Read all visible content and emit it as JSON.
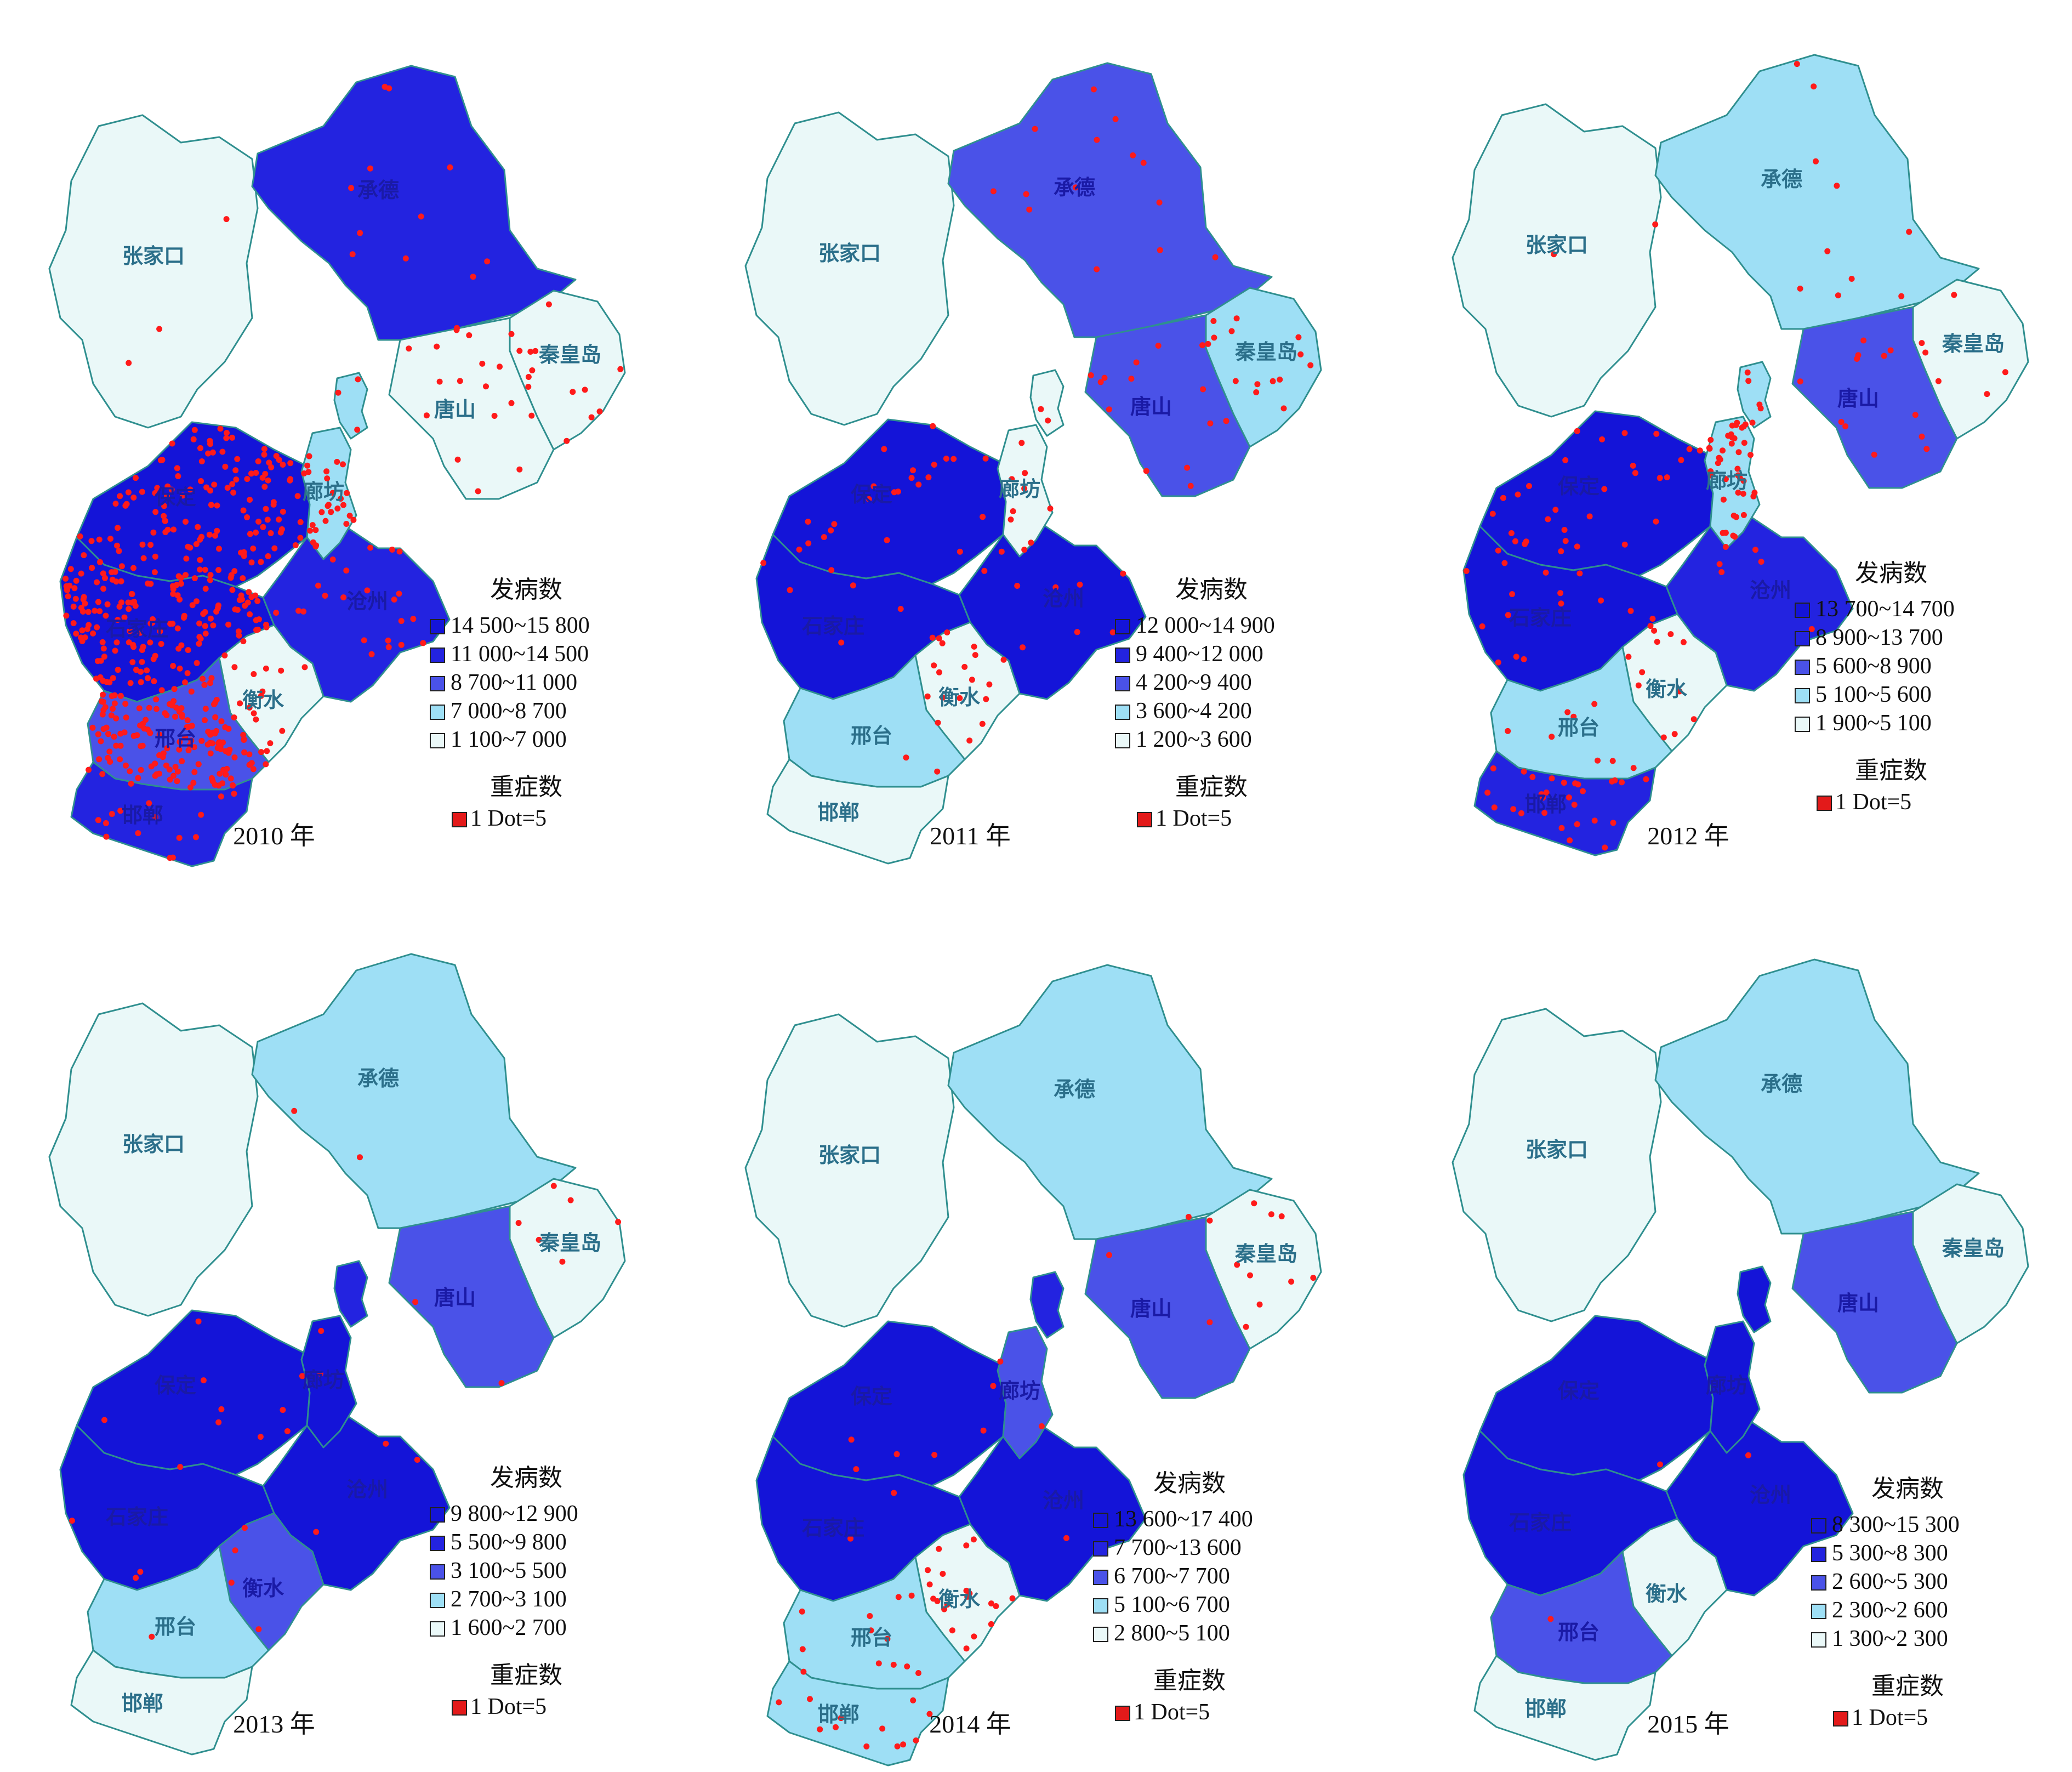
{
  "colors": {
    "level1": "#1414d8",
    "level2": "#2323e0",
    "level3": "#4a52e8",
    "level4": "#9edff5",
    "level5": "#eaf8f8",
    "border": "#2f8f8f",
    "dot": "#ff1a1a"
  },
  "cities": {
    "zhangjiakou": "张家口",
    "chengde": "承德",
    "qinhuangdao": "秦皇岛",
    "tangshan": "唐山",
    "langfang": "廊坊",
    "baoding": "保定",
    "cangzhou": "沧州",
    "shijiazhuang": "石家庄",
    "hengshui": "衡水",
    "xingtai": "邢台",
    "handan": "邯郸"
  },
  "legend_titles": {
    "incidence": "发病数",
    "severe": "重症数",
    "dot_key": "1 Dot=5"
  },
  "panels": [
    {
      "year": "2010 年",
      "legend": [
        "14 500~15 800",
        "11 000~14 500",
        "8 700~11 000",
        "7 000~8 700",
        "1 100~7 000"
      ],
      "levels": {
        "zhangjiakou": 5,
        "chengde": 2,
        "qinhuangdao": 5,
        "tangshan": 5,
        "beijing": 4,
        "langfang": 4,
        "baoding": 1,
        "cangzhou": 2,
        "shijiazhuang": 1,
        "hengshui": 5,
        "xingtai": 3,
        "handan": 2
      },
      "dots": {
        "zhangjiakou": 3,
        "chengde": 12,
        "qinhuangdao": 14,
        "tangshan": 16,
        "beijing": 3,
        "langfang": 26,
        "baoding": 140,
        "cangzhou": 22,
        "shijiazhuang": 160,
        "hengshui": 18,
        "xingtai": 150,
        "handan": 18
      }
    },
    {
      "year": "2011 年",
      "legend": [
        "12 000~14 900",
        "9 400~12 000",
        "4 200~9 400",
        "3 600~4 200",
        "1 200~3 600"
      ],
      "levels": {
        "zhangjiakou": 5,
        "chengde": 3,
        "qinhuangdao": 4,
        "tangshan": 3,
        "beijing": 5,
        "langfang": 5,
        "baoding": 1,
        "cangzhou": 1,
        "shijiazhuang": 1,
        "hengshui": 5,
        "xingtai": 4,
        "handan": 5
      },
      "dots": {
        "zhangjiakou": 0,
        "chengde": 14,
        "qinhuangdao": 14,
        "tangshan": 14,
        "beijing": 2,
        "langfang": 8,
        "baoding": 24,
        "cangzhou": 10,
        "shijiazhuang": 6,
        "hengshui": 18,
        "xingtai": 2,
        "handan": 0
      }
    },
    {
      "year": "2012 年",
      "legend": [
        "13 700~14 700",
        "8 900~13 700",
        "5 600~8 900",
        "5 100~5 600",
        "1 900~5 100"
      ],
      "levels": {
        "zhangjiakou": 5,
        "chengde": 4,
        "qinhuangdao": 5,
        "tangshan": 3,
        "beijing": 4,
        "langfang": 4,
        "baoding": 1,
        "cangzhou": 2,
        "shijiazhuang": 1,
        "hengshui": 5,
        "xingtai": 4,
        "handan": 2
      },
      "dots": {
        "zhangjiakou": 2,
        "chengde": 10,
        "qinhuangdao": 6,
        "tangshan": 12,
        "beijing": 5,
        "langfang": 40,
        "baoding": 30,
        "cangzhou": 6,
        "shijiazhuang": 16,
        "hengshui": 12,
        "xingtai": 8,
        "handan": 28
      }
    },
    {
      "year": "2013 年",
      "legend": [
        "9 800~12 900",
        "5 500~9 800",
        "3 100~5 500",
        "2 700~3 100",
        "1 600~2 700"
      ],
      "levels": {
        "zhangjiakou": 5,
        "chengde": 4,
        "qinhuangdao": 5,
        "tangshan": 3,
        "beijing": 2,
        "langfang": 1,
        "baoding": 1,
        "cangzhou": 1,
        "shijiazhuang": 1,
        "hengshui": 3,
        "xingtai": 4,
        "handan": 5
      },
      "dots": {
        "zhangjiakou": 0,
        "chengde": 2,
        "qinhuangdao": 6,
        "tangshan": 2,
        "beijing": 0,
        "langfang": 2,
        "baoding": 10,
        "cangzhou": 3,
        "shijiazhuang": 3,
        "hengshui": 4,
        "xingtai": 1,
        "handan": 0
      }
    },
    {
      "year": "2014 年",
      "legend": [
        "13 600~17 400",
        "7 700~13 600",
        "6 700~7 700",
        "5 100~6 700",
        "2 800~5 100"
      ],
      "levels": {
        "zhangjiakou": 5,
        "chengde": 4,
        "qinhuangdao": 5,
        "tangshan": 3,
        "beijing": 2,
        "langfang": 3,
        "baoding": 1,
        "cangzhou": 1,
        "shijiazhuang": 1,
        "hengshui": 5,
        "xingtai": 4,
        "handan": 4
      },
      "dots": {
        "zhangjiakou": 0,
        "chengde": 1,
        "qinhuangdao": 10,
        "tangshan": 2,
        "beijing": 0,
        "langfang": 2,
        "baoding": 6,
        "cangzhou": 1,
        "shijiazhuang": 2,
        "hengshui": 20,
        "xingtai": 12,
        "handan": 12
      }
    },
    {
      "year": "2015 年",
      "legend": [
        "8 300~15 300",
        "5 300~8 300",
        "2 600~5 300",
        "2 300~2 600",
        "1 300~2 300"
      ],
      "levels": {
        "zhangjiakou": 5,
        "chengde": 4,
        "qinhuangdao": 5,
        "tangshan": 3,
        "beijing": 1,
        "langfang": 1,
        "baoding": 1,
        "cangzhou": 1,
        "shijiazhuang": 1,
        "hengshui": 5,
        "xingtai": 3,
        "handan": 5
      },
      "dots": {
        "zhangjiakou": 0,
        "chengde": 0,
        "qinhuangdao": 0,
        "tangshan": 0,
        "beijing": 0,
        "langfang": 0,
        "baoding": 1,
        "cangzhou": 1,
        "shijiazhuang": 0,
        "hengshui": 0,
        "xingtai": 1,
        "handan": 0
      }
    }
  ]
}
